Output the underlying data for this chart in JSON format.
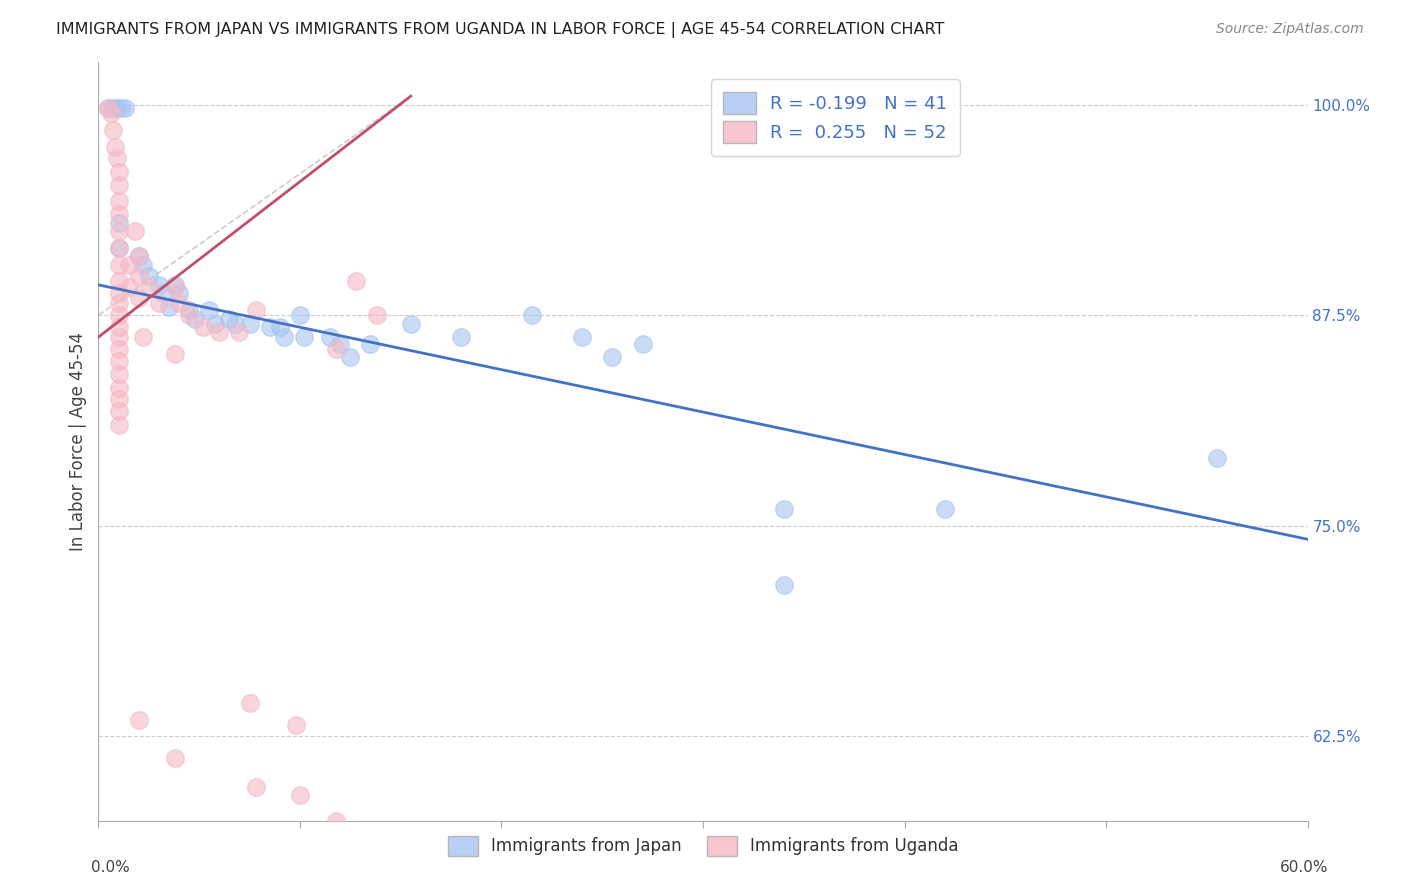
{
  "title": "IMMIGRANTS FROM JAPAN VS IMMIGRANTS FROM UGANDA IN LABOR FORCE | AGE 45-54 CORRELATION CHART",
  "source": "Source: ZipAtlas.com",
  "ylabel": "In Labor Force | Age 45-54",
  "xlim": [
    0.0,
    0.6
  ],
  "ylim": [
    0.575,
    1.025
  ],
  "japan_R": -0.199,
  "japan_N": 41,
  "uganda_R": 0.255,
  "uganda_N": 52,
  "japan_color": "#a8c4f0",
  "uganda_color": "#f5b8c4",
  "japan_line_color": "#4472c4",
  "uganda_line_color": "#c0506a",
  "diagonal_color": "#cccccc",
  "legend_label_japan": "Immigrants from Japan",
  "legend_label_uganda": "Immigrants from Uganda",
  "right_axis_color": "#4472c4",
  "japan_line": [
    [
      0.0,
      0.893
    ],
    [
      0.6,
      0.742
    ]
  ],
  "uganda_line": [
    [
      0.0,
      0.862
    ],
    [
      0.155,
      1.005
    ]
  ],
  "diagonal_line": [
    [
      0.0,
      0.875
    ],
    [
      0.155,
      1.005
    ]
  ],
  "japan_points": [
    [
      0.005,
      0.998
    ],
    [
      0.007,
      0.998
    ],
    [
      0.009,
      0.998
    ],
    [
      0.011,
      0.998
    ],
    [
      0.013,
      0.998
    ],
    [
      0.01,
      0.93
    ],
    [
      0.01,
      0.915
    ],
    [
      0.02,
      0.91
    ],
    [
      0.022,
      0.905
    ],
    [
      0.025,
      0.898
    ],
    [
      0.03,
      0.893
    ],
    [
      0.032,
      0.888
    ],
    [
      0.035,
      0.88
    ],
    [
      0.038,
      0.893
    ],
    [
      0.04,
      0.888
    ],
    [
      0.045,
      0.878
    ],
    [
      0.048,
      0.873
    ],
    [
      0.055,
      0.878
    ],
    [
      0.058,
      0.87
    ],
    [
      0.065,
      0.873
    ],
    [
      0.068,
      0.87
    ],
    [
      0.075,
      0.87
    ],
    [
      0.085,
      0.868
    ],
    [
      0.09,
      0.868
    ],
    [
      0.092,
      0.862
    ],
    [
      0.1,
      0.875
    ],
    [
      0.102,
      0.862
    ],
    [
      0.115,
      0.862
    ],
    [
      0.12,
      0.858
    ],
    [
      0.125,
      0.85
    ],
    [
      0.135,
      0.858
    ],
    [
      0.155,
      0.87
    ],
    [
      0.18,
      0.862
    ],
    [
      0.215,
      0.875
    ],
    [
      0.24,
      0.862
    ],
    [
      0.255,
      0.85
    ],
    [
      0.27,
      0.858
    ],
    [
      0.34,
      0.76
    ],
    [
      0.34,
      0.715
    ],
    [
      0.42,
      0.76
    ],
    [
      0.555,
      0.79
    ]
  ],
  "uganda_points": [
    [
      0.005,
      0.998
    ],
    [
      0.006,
      0.995
    ],
    [
      0.007,
      0.985
    ],
    [
      0.008,
      0.975
    ],
    [
      0.009,
      0.968
    ],
    [
      0.01,
      0.96
    ],
    [
      0.01,
      0.952
    ],
    [
      0.01,
      0.943
    ],
    [
      0.01,
      0.935
    ],
    [
      0.01,
      0.925
    ],
    [
      0.01,
      0.915
    ],
    [
      0.01,
      0.905
    ],
    [
      0.01,
      0.895
    ],
    [
      0.01,
      0.888
    ],
    [
      0.01,
      0.882
    ],
    [
      0.01,
      0.875
    ],
    [
      0.01,
      0.868
    ],
    [
      0.01,
      0.862
    ],
    [
      0.01,
      0.855
    ],
    [
      0.01,
      0.848
    ],
    [
      0.01,
      0.84
    ],
    [
      0.01,
      0.832
    ],
    [
      0.01,
      0.825
    ],
    [
      0.01,
      0.818
    ],
    [
      0.01,
      0.81
    ],
    [
      0.015,
      0.905
    ],
    [
      0.015,
      0.892
    ],
    [
      0.018,
      0.925
    ],
    [
      0.02,
      0.91
    ],
    [
      0.02,
      0.898
    ],
    [
      0.02,
      0.885
    ],
    [
      0.025,
      0.892
    ],
    [
      0.03,
      0.882
    ],
    [
      0.038,
      0.892
    ],
    [
      0.04,
      0.882
    ],
    [
      0.045,
      0.875
    ],
    [
      0.052,
      0.868
    ],
    [
      0.06,
      0.865
    ],
    [
      0.07,
      0.865
    ],
    [
      0.078,
      0.878
    ],
    [
      0.118,
      0.855
    ],
    [
      0.128,
      0.895
    ],
    [
      0.138,
      0.875
    ],
    [
      0.022,
      0.862
    ],
    [
      0.038,
      0.852
    ],
    [
      0.02,
      0.635
    ],
    [
      0.038,
      0.612
    ],
    [
      0.075,
      0.645
    ],
    [
      0.078,
      0.595
    ],
    [
      0.098,
      0.632
    ],
    [
      0.1,
      0.59
    ],
    [
      0.118,
      0.575
    ]
  ]
}
